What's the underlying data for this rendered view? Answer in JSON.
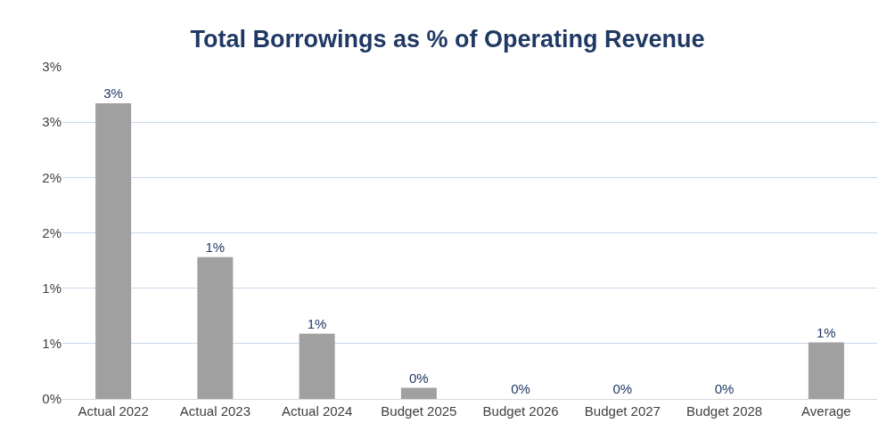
{
  "chart_data": {
    "type": "bar",
    "title": "Total Borrowings as % of Operating Revenue",
    "categories": [
      "Actual 2022",
      "Actual 2023",
      "Actual 2024",
      "Budget 2025",
      "Budget 2026",
      "Budget 2027",
      "Budget 2028",
      "Average"
    ],
    "values": [
      2.67,
      1.28,
      0.59,
      0.1,
      0,
      0,
      0,
      0.51
    ],
    "value_labels": [
      "3%",
      "1%",
      "1%",
      "0%",
      "0%",
      "0%",
      "0%",
      "1%"
    ],
    "color": "#a0a0a0",
    "ylim": [
      0,
      3
    ],
    "yticks": [
      {
        "value": 0,
        "label": "0%"
      },
      {
        "value": 0.5,
        "label": "1%"
      },
      {
        "value": 1,
        "label": "1%"
      },
      {
        "value": 1.5,
        "label": "2%"
      },
      {
        "value": 2,
        "label": "2%"
      },
      {
        "value": 2.5,
        "label": "3%"
      },
      {
        "value": 3,
        "label": "3%"
      }
    ],
    "grid": "y",
    "legend": false
  }
}
